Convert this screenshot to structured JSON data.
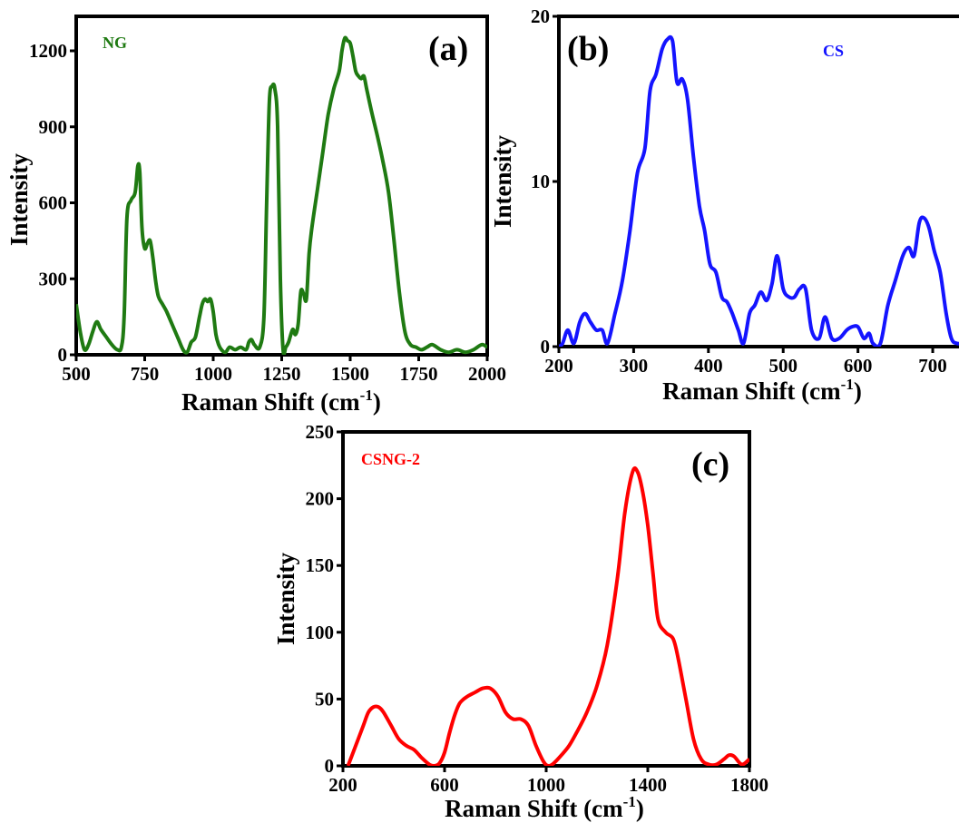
{
  "chart_data": [
    {
      "type": "line",
      "panel_label": "(a)",
      "xlabel": "Raman Shift (cm",
      "xlabel_sup": "-1",
      "xlabel_end": ")",
      "ylabel": "Intensity",
      "xlim": [
        500,
        2000
      ],
      "ylim": [
        0,
        1300
      ],
      "xticks": [
        500,
        750,
        1000,
        1250,
        1500,
        1750,
        2000
      ],
      "yticks": [
        0,
        300,
        600,
        900,
        1200
      ],
      "series": [
        {
          "name": "NG",
          "color": "#1f7a12",
          "x": [
            500,
            515,
            530,
            545,
            560,
            575,
            590,
            610,
            630,
            650,
            665,
            675,
            685,
            700,
            715,
            725,
            732,
            740,
            750,
            760,
            770,
            780,
            790,
            800,
            815,
            830,
            850,
            870,
            890,
            905,
            920,
            935,
            950,
            960,
            970,
            980,
            990,
            1000,
            1010,
            1020,
            1030,
            1045,
            1060,
            1080,
            1100,
            1120,
            1130,
            1140,
            1150,
            1170,
            1185,
            1195,
            1205,
            1215,
            1225,
            1235,
            1245,
            1255,
            1265,
            1275,
            1290,
            1300,
            1310,
            1320,
            1330,
            1340,
            1350,
            1360,
            1380,
            1400,
            1420,
            1440,
            1460,
            1470,
            1480,
            1490,
            1500,
            1510,
            1520,
            1530,
            1540,
            1550,
            1560,
            1580,
            1600,
            1620,
            1640,
            1660,
            1680,
            1700,
            1720,
            1740,
            1760,
            1780,
            1800,
            1830,
            1860,
            1890,
            1920,
            1950,
            1980,
            2000
          ],
          "y": [
            200,
            90,
            20,
            40,
            90,
            130,
            100,
            70,
            40,
            20,
            30,
            150,
            540,
            610,
            640,
            745,
            720,
            500,
            420,
            440,
            450,
            380,
            290,
            230,
            200,
            170,
            120,
            70,
            20,
            10,
            50,
            70,
            150,
            200,
            220,
            210,
            220,
            170,
            80,
            40,
            20,
            10,
            30,
            20,
            30,
            20,
            50,
            60,
            40,
            30,
            150,
            600,
            1000,
            1060,
            1050,
            900,
            300,
            20,
            30,
            50,
            100,
            80,
            120,
            250,
            240,
            220,
            400,
            500,
            650,
            800,
            950,
            1050,
            1120,
            1200,
            1250,
            1240,
            1230,
            1180,
            1120,
            1100,
            1090,
            1100,
            1050,
            950,
            860,
            760,
            640,
            450,
            240,
            90,
            40,
            30,
            20,
            30,
            40,
            20,
            10,
            20,
            10,
            20,
            40,
            30
          ]
        }
      ]
    },
    {
      "type": "line",
      "panel_label": "(b)",
      "xlabel": "Raman Shift (cm",
      "xlabel_sup": "-1",
      "xlabel_end": ")",
      "ylabel": "Intensity",
      "xlim": [
        200,
        740
      ],
      "ylim": [
        0,
        20
      ],
      "xticks": [
        200,
        300,
        400,
        500,
        600,
        700
      ],
      "yticks": [
        0,
        10,
        20
      ],
      "series": [
        {
          "name": "CS",
          "color": "#1414ff",
          "x": [
            200,
            205,
            212,
            220,
            228,
            235,
            242,
            250,
            258,
            265,
            275,
            285,
            295,
            305,
            315,
            322,
            330,
            338,
            345,
            352,
            358,
            365,
            372,
            380,
            388,
            395,
            402,
            410,
            418,
            425,
            432,
            440,
            447,
            455,
            462,
            470,
            478,
            485,
            492,
            500,
            508,
            515,
            522,
            530,
            538,
            548,
            556,
            565,
            575,
            585,
            592,
            600,
            608,
            615,
            620,
            630,
            640,
            650,
            660,
            668,
            675,
            682,
            688,
            695,
            702,
            710,
            718,
            725,
            732,
            740
          ],
          "y": [
            0,
            0.2,
            1,
            0.2,
            1.5,
            2,
            1.5,
            1,
            1,
            0.2,
            2,
            4,
            7,
            10.5,
            12,
            15.5,
            16.5,
            18,
            18.6,
            18.5,
            16,
            16.2,
            15,
            11.5,
            8.5,
            7,
            5,
            4.5,
            3,
            2.7,
            2,
            1,
            0.2,
            2,
            2.5,
            3.3,
            2.8,
            3.8,
            5.5,
            3.5,
            3,
            3,
            3.5,
            3.5,
            1,
            0.5,
            1.8,
            0.5,
            0.5,
            1,
            1.2,
            1.2,
            0.5,
            0.8,
            0.2,
            0.2,
            2.5,
            4,
            5.5,
            6,
            5.5,
            7.5,
            7.8,
            7.2,
            5.8,
            4.5,
            2,
            0.5,
            0.2,
            0.2
          ]
        }
      ]
    },
    {
      "type": "line",
      "panel_label": "(c)",
      "xlabel": "Raman Shift (cm",
      "xlabel_sup": "-1",
      "xlabel_end": ")",
      "ylabel": "Intensity",
      "xlim": [
        200,
        1800
      ],
      "ylim": [
        0,
        250
      ],
      "xticks": [
        200,
        600,
        1000,
        1400,
        1800
      ],
      "yticks": [
        0,
        50,
        100,
        150,
        200,
        250
      ],
      "series": [
        {
          "name": "CSNG-2",
          "color": "#ff0000",
          "x": [
            220,
            250,
            280,
            300,
            320,
            340,
            360,
            390,
            420,
            450,
            480,
            510,
            540,
            560,
            580,
            600,
            620,
            640,
            660,
            690,
            720,
            750,
            780,
            810,
            840,
            870,
            900,
            930,
            960,
            990,
            1010,
            1030,
            1060,
            1090,
            1120,
            1160,
            1200,
            1240,
            1280,
            1310,
            1340,
            1360,
            1380,
            1400,
            1420,
            1440,
            1470,
            1500,
            1520,
            1550,
            1580,
            1610,
            1640,
            1670,
            1700,
            1720,
            1740,
            1770,
            1800
          ],
          "y": [
            0,
            15,
            30,
            40,
            44,
            44,
            40,
            30,
            20,
            15,
            12,
            6,
            1,
            0,
            2,
            10,
            25,
            38,
            47,
            52,
            55,
            58,
            58,
            52,
            40,
            35,
            35,
            30,
            15,
            3,
            0,
            2,
            8,
            15,
            25,
            40,
            60,
            90,
            140,
            190,
            220,
            220,
            205,
            180,
            145,
            110,
            100,
            95,
            80,
            50,
            20,
            5,
            1,
            1,
            5,
            8,
            7,
            1,
            5
          ]
        }
      ]
    }
  ]
}
